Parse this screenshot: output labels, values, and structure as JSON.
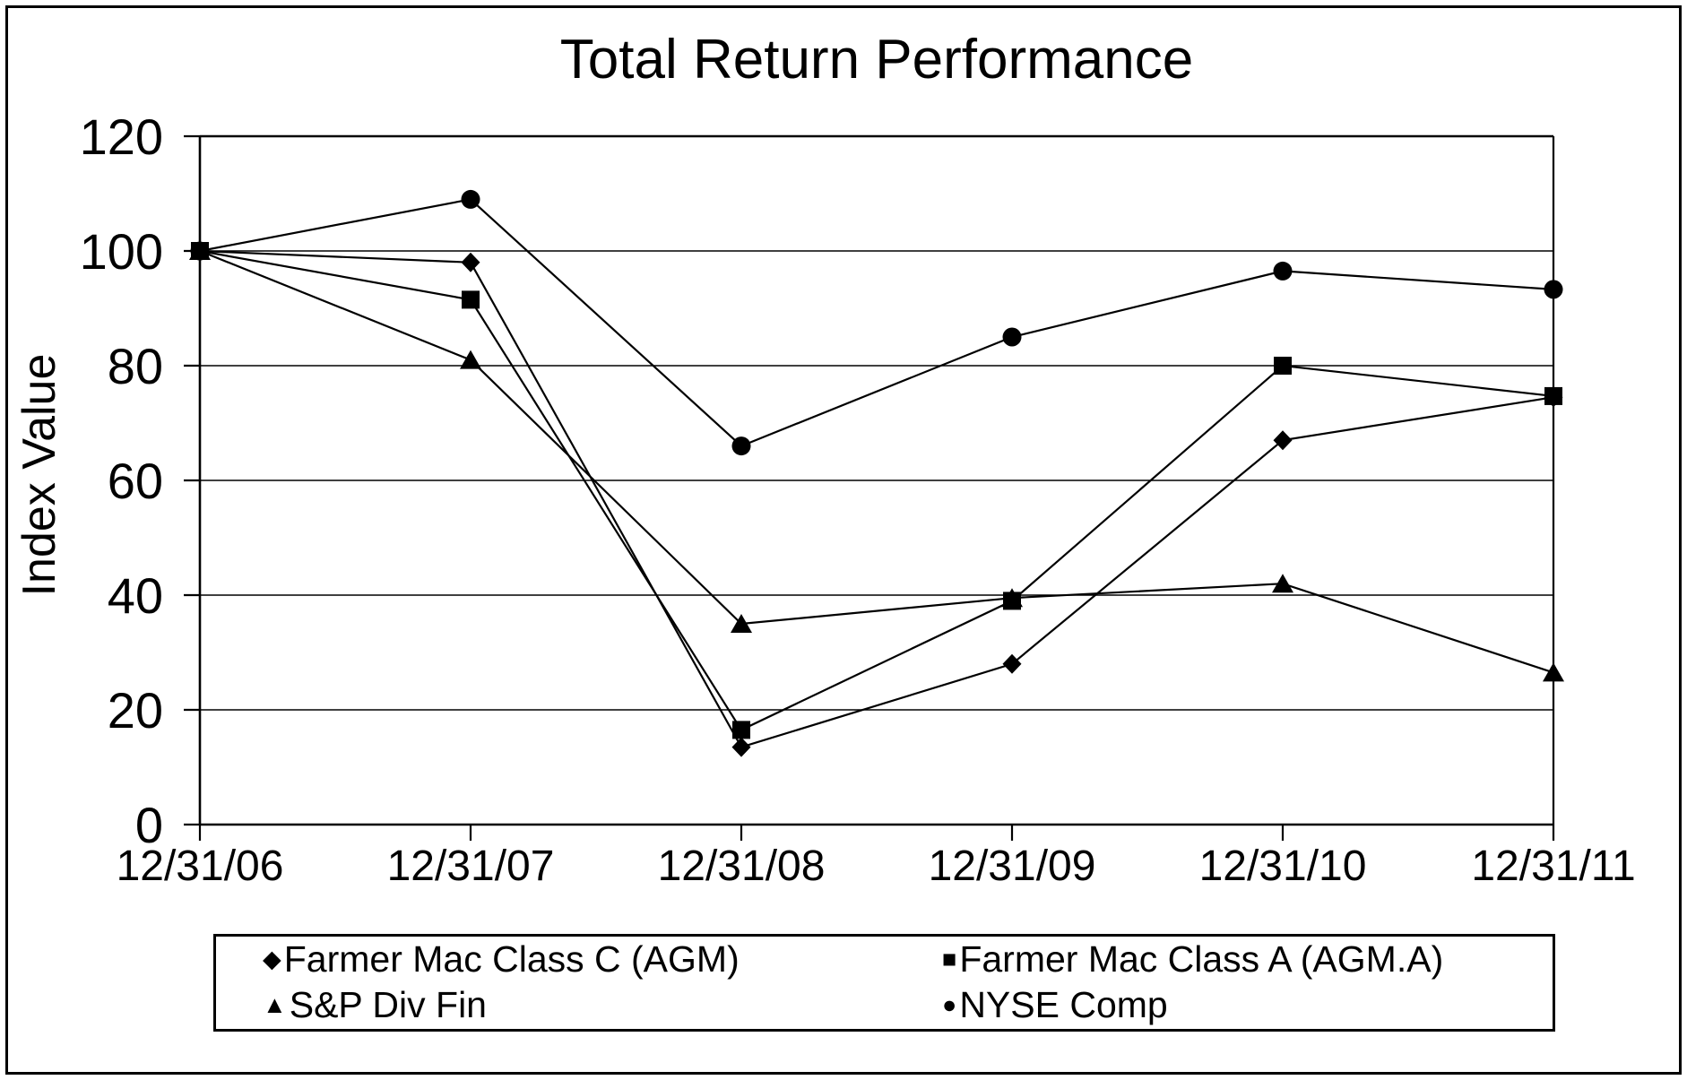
{
  "figure": {
    "background": "#ffffff",
    "border_color": "#000000"
  },
  "chart_data": {
    "type": "line",
    "title": "Total Return Performance",
    "ylabel": "Index Value",
    "xlabel": "",
    "categories": [
      "12/31/06",
      "12/31/07",
      "12/31/08",
      "12/31/09",
      "12/31/10",
      "12/31/11"
    ],
    "ylim": [
      0,
      120
    ],
    "yticks": [
      0,
      20,
      40,
      60,
      80,
      100,
      120
    ],
    "grid": "horizontal",
    "legend_position": "bottom",
    "line_color": "#000000",
    "marker_color": "#000000",
    "series": [
      {
        "name": "Farmer Mac Class C (AGM)",
        "marker": "diamond",
        "values": [
          100,
          98,
          13.5,
          28,
          67,
          74.5
        ]
      },
      {
        "name": "Farmer Mac Class A (AGM.A)",
        "marker": "square",
        "values": [
          100,
          91.5,
          16.5,
          39,
          80,
          74.7
        ]
      },
      {
        "name": "S&P Div Fin",
        "marker": "triangle",
        "values": [
          100,
          81,
          35,
          39.5,
          42,
          26.5
        ]
      },
      {
        "name": "NYSE Comp",
        "marker": "circle",
        "values": [
          100,
          109,
          66,
          85,
          96.5,
          93.3
        ]
      }
    ]
  }
}
